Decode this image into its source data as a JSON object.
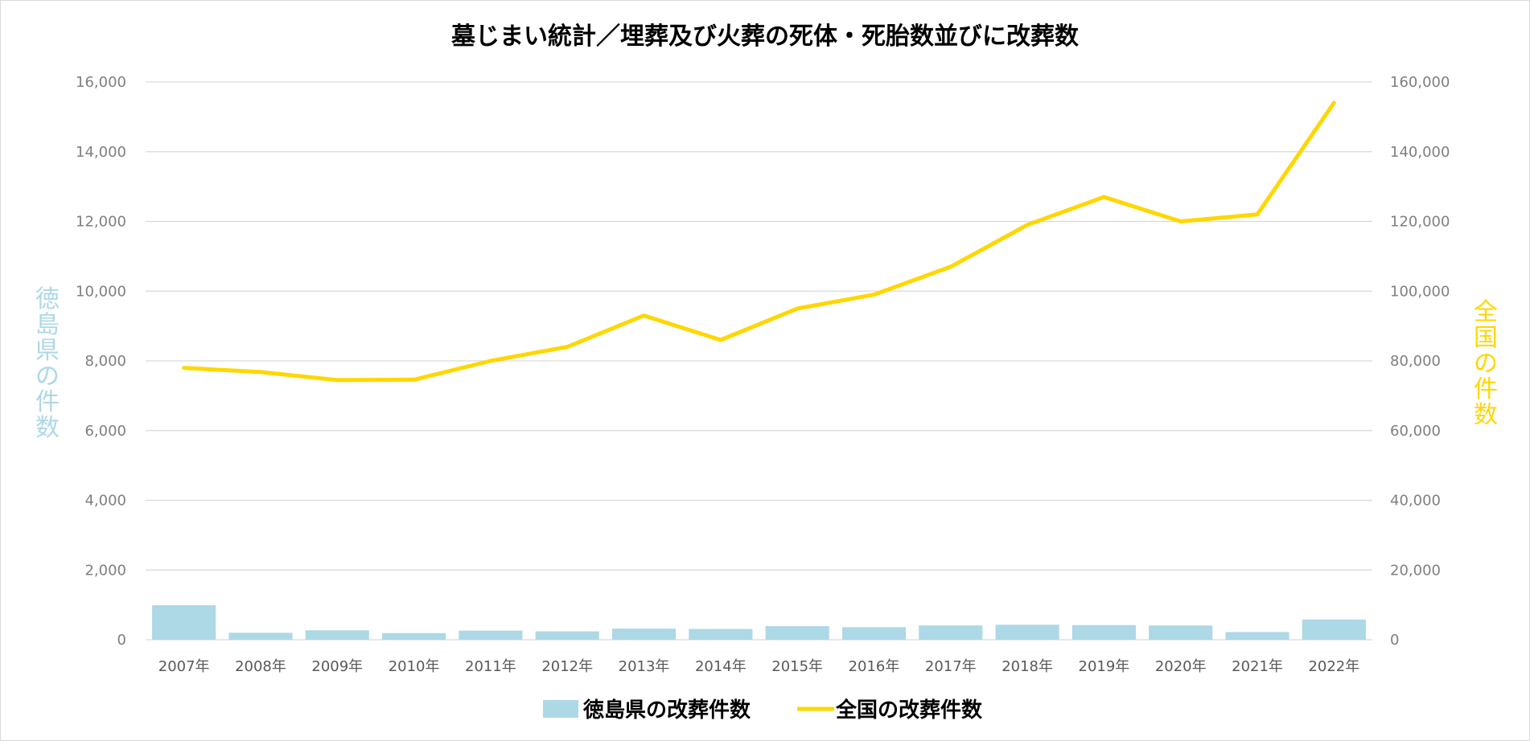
{
  "chart_data": {
    "type": "bar+line",
    "title": "墓じまい統計／埋葬及び火葬の死体・死胎数並びに改葬数",
    "categories": [
      "2007年",
      "2008年",
      "2009年",
      "2010年",
      "2011年",
      "2012年",
      "2013年",
      "2014年",
      "2015年",
      "2016年",
      "2017年",
      "2018年",
      "2019年",
      "2020年",
      "2021年",
      "2022年"
    ],
    "series": [
      {
        "name": "徳島県の改葬件数",
        "type": "bar",
        "axis": "left",
        "color": "#add8e6",
        "values": [
          990,
          200,
          270,
          190,
          260,
          240,
          320,
          310,
          390,
          360,
          410,
          430,
          420,
          410,
          220,
          580
        ]
      },
      {
        "name": "全国の改葬件数",
        "type": "line",
        "axis": "right",
        "color": "#ffd700",
        "values": [
          78000,
          76800,
          74500,
          74600,
          80000,
          84000,
          93000,
          86000,
          95000,
          99000,
          107000,
          119000,
          127000,
          120000,
          122000,
          154000
        ]
      }
    ],
    "ylabel_left": "徳島県の件数",
    "ylabel_right": "全国の件数",
    "ylim_left": [
      0,
      16000
    ],
    "ylim_right": [
      0,
      160000
    ],
    "yticks_left": [
      "0",
      "2,000",
      "4,000",
      "6,000",
      "8,000",
      "10,000",
      "12,000",
      "14,000",
      "16,000"
    ],
    "yticks_right": [
      "0",
      "20,000",
      "40,000",
      "60,000",
      "80,000",
      "100,000",
      "120,000",
      "140,000",
      "160,000"
    ],
    "grid": "horizontal",
    "legend_position": "bottom",
    "colors": {
      "left_axis_title": "#add8e6",
      "right_axis_title": "#ffd700",
      "grid": "#d9d9d9"
    }
  }
}
